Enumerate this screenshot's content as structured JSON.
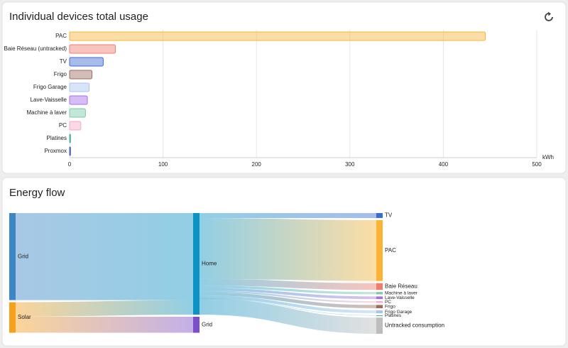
{
  "chart_data": [
    {
      "type": "hbar",
      "title": "Individual devices total usage",
      "categories": [
        "PAC",
        "Baie Réseau (untracked)",
        "TV",
        "Frigo",
        "Frigo Garage",
        "Lave-Vaisselle",
        "Machine à laver",
        "PC",
        "Platines",
        "Proxmox"
      ],
      "values": [
        445,
        49,
        36,
        24,
        21,
        19,
        17,
        12,
        1,
        1
      ],
      "colors": [
        "#f9b437",
        "#f07c6c",
        "#3b6bd1",
        "#9a6b5e",
        "#a9c4f0",
        "#a56fe8",
        "#7bc9a7",
        "#f3a9c6",
        "#3aa89c",
        "#3a5ca8"
      ],
      "xlabel": "kWh",
      "xlim": [
        0,
        500
      ],
      "xticks": [
        0,
        100,
        200,
        300,
        400,
        500
      ],
      "grid": true
    },
    {
      "type": "sankey",
      "title": "Energy flow",
      "nodes": [
        {
          "name": "Grid",
          "color": "#3d86c6"
        },
        {
          "name": "Solar",
          "color": "#f6a11d"
        },
        {
          "name": "Home",
          "color": "#0c93c4"
        },
        {
          "name": "Grid",
          "color": "#7b4fcc"
        },
        {
          "name": "TV",
          "color": "#3b6bd1"
        },
        {
          "name": "PAC",
          "color": "#f9b437"
        },
        {
          "name": "Baie Réseau",
          "color": "#f07c6c"
        },
        {
          "name": "Machine à laver",
          "color": "#7bc9a7"
        },
        {
          "name": "Lave-Vaisselle",
          "color": "#a56fe8"
        },
        {
          "name": "PC",
          "color": "#f3a9c6"
        },
        {
          "name": "Frigo",
          "color": "#9a6b5e"
        },
        {
          "name": "Frigo Garage",
          "color": "#a9c4f0"
        },
        {
          "name": "Platines",
          "color": "#3aa89c"
        },
        {
          "name": "Untracked consumption",
          "color": "#bdbdbd"
        }
      ],
      "links": [
        {
          "source": 0,
          "target": 2,
          "value": 636
        },
        {
          "source": 1,
          "target": 2,
          "value": 106
        },
        {
          "source": 1,
          "target": 3,
          "value": 117
        },
        {
          "source": 2,
          "target": 4,
          "value": 36
        },
        {
          "source": 2,
          "target": 5,
          "value": 445
        },
        {
          "source": 2,
          "target": 6,
          "value": 49
        },
        {
          "source": 2,
          "target": 7,
          "value": 17
        },
        {
          "source": 2,
          "target": 8,
          "value": 19
        },
        {
          "source": 2,
          "target": 9,
          "value": 12
        },
        {
          "source": 2,
          "target": 10,
          "value": 24
        },
        {
          "source": 2,
          "target": 11,
          "value": 21
        },
        {
          "source": 2,
          "target": 12,
          "value": 1
        },
        {
          "source": 2,
          "target": 13,
          "value": 118
        }
      ]
    }
  ]
}
